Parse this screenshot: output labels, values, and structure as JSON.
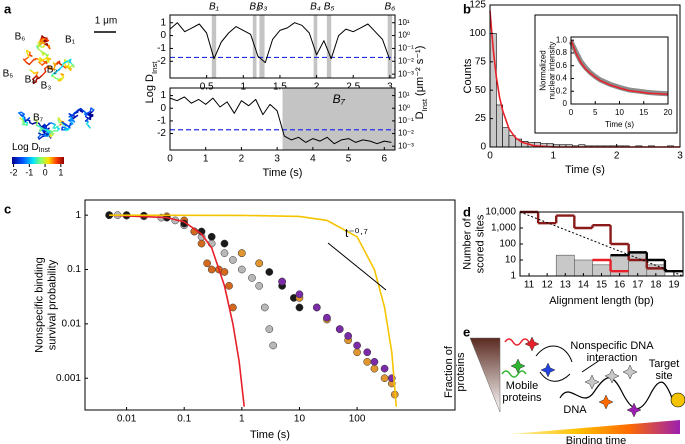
{
  "panel_labels": [
    "a",
    "b",
    "c",
    "d",
    "e"
  ],
  "trajectories": {
    "scale_bar": "1 μm",
    "labels": [
      "B₆",
      "B₁",
      "B₅",
      "B₂",
      "B₄",
      "B₃",
      "B₇"
    ],
    "colorbar_label": {
      "text": "Log D",
      "subscript": "Inst"
    },
    "colorbar_ticks": [
      -2,
      -1,
      0,
      1
    ],
    "colorbar_lim": [
      -2.1,
      1.2
    ]
  },
  "chart_data": [
    {
      "type": "line",
      "x": [
        0,
        0.1,
        0.2,
        0.3,
        0.4,
        0.5,
        0.6,
        0.7,
        0.8,
        0.9,
        1,
        1.1,
        1.2,
        1.3,
        1.4,
        1.5,
        1.6,
        1.7,
        1.8,
        1.9,
        2,
        2.1,
        2.2,
        2.3,
        2.4,
        2.5,
        2.6,
        2.7,
        2.8,
        2.9,
        3
      ],
      "series": [
        {
          "color": "#000000",
          "values": [
            0.5,
            1,
            0.3,
            0.6,
            0.9,
            0.2,
            -1.8,
            -0.5,
            0.2,
            0.7,
            0.4,
            0.1,
            -1.6,
            -2.1,
            -0.3,
            0.4,
            0.6,
            1,
            0.8,
            0.2,
            -1.5,
            -0.4,
            -1.8,
            0,
            0.5,
            0.3,
            0.6,
            0.9,
            0.3,
            -0.3,
            -1.9
          ]
        }
      ],
      "xlim": [
        0,
        3.07
      ],
      "xticks": [
        0.5,
        1,
        1.5,
        2,
        2.5,
        3
      ],
      "ylim": [
        -3.3,
        1.6
      ],
      "yticks": [
        1,
        0,
        -1,
        -2
      ],
      "y2lim": [
        -3.3,
        1.6
      ],
      "y2ticks": [
        {
          "value": 1,
          "label": "10¹"
        },
        {
          "value": 0,
          "label": "10⁰"
        },
        {
          "value": -1,
          "label": "10⁻¹"
        },
        {
          "value": -2,
          "label": "10⁻²"
        },
        {
          "value": -3,
          "label": "10⁻³"
        }
      ],
      "ylabel": {
        "text": "Log D",
        "subscript": "Inst"
      },
      "y2label": {
        "text": "D",
        "subscript": "Inst",
        "suffix": " (μm⁻² s⁻¹)"
      },
      "hline": {
        "value": -1.7,
        "color": "#2233ee"
      },
      "band_color": "#c4c4c4",
      "bands": [
        {
          "x": [
            0.57,
            0.63
          ],
          "label": "B₁"
        },
        {
          "x": [
            1.13,
            1.18
          ],
          "label": "B₂"
        },
        {
          "x": [
            1.22,
            1.29
          ],
          "label": "B₃"
        },
        {
          "x": [
            1.96,
            2.01
          ],
          "label": "B₄"
        },
        {
          "x": [
            2.14,
            2.2
          ],
          "label": "B₅"
        },
        {
          "x": [
            2.97,
            3.03
          ],
          "label": "B₆"
        }
      ]
    },
    {
      "type": "line",
      "x": [
        0,
        0.2,
        0.4,
        0.6,
        0.8,
        1,
        1.2,
        1.4,
        1.6,
        1.8,
        2,
        2.2,
        2.4,
        2.6,
        2.8,
        3,
        3.2,
        3.4,
        3.6,
        3.8,
        4,
        4.2,
        4.4,
        4.6,
        4.8,
        5,
        5.2,
        5.4,
        5.6,
        5.8,
        6,
        6.2
      ],
      "series": [
        {
          "color": "#000000",
          "values": [
            0.8,
            0.6,
            0.9,
            0.4,
            0.7,
            0.3,
            0.8,
            0.1,
            0.5,
            -0.4,
            0.6,
            0.2,
            0.7,
            -0.5,
            0.3,
            -0.2,
            -2.2,
            -2.5,
            -2.3,
            -2.7,
            -2.4,
            -2.6,
            -2.3,
            -2.8,
            -2.5,
            -2.4,
            -2.7,
            -2.5,
            -2.6,
            -2.8,
            -2.6,
            -2.7
          ]
        }
      ],
      "xlim": [
        0,
        6.3
      ],
      "xticks": [
        0,
        1,
        2,
        3,
        4,
        5,
        6
      ],
      "ylim": [
        -3.3,
        1.6
      ],
      "yticks": [
        1,
        0,
        -1,
        -2
      ],
      "y2lim": [
        -3.3,
        1.6
      ],
      "y2ticks": [
        {
          "value": 1,
          "label": "10¹"
        },
        {
          "value": 0,
          "label": "10⁰"
        },
        {
          "value": -1,
          "label": "10⁻¹"
        },
        {
          "value": -2,
          "label": "10⁻²"
        },
        {
          "value": -3,
          "label": "10⁻³"
        }
      ],
      "xlabel": "Time (s)",
      "hline": {
        "value": -1.7,
        "color": "#2233ee"
      },
      "band_color": "#c4c4c4",
      "bands": [
        {
          "x": [
            3.15,
            6.3
          ],
          "label": "B₇"
        }
      ]
    },
    {
      "type": "histogram",
      "bins": [
        0,
        0.1,
        0.2,
        0.3,
        0.4,
        0.5,
        0.6,
        0.7,
        0.8,
        0.9,
        1,
        1.1,
        1.2,
        1.3,
        1.4,
        1.5,
        1.6,
        1.7,
        1.8,
        1.9,
        2,
        2.1,
        2.2,
        2.3,
        2.4,
        2.5,
        2.6,
        2.7,
        2.8,
        2.9,
        3
      ],
      "counts": [
        100,
        37,
        17,
        10,
        7,
        5,
        4,
        4,
        3,
        3,
        2,
        2,
        2,
        1,
        2,
        1,
        1,
        1,
        1,
        1,
        1,
        1,
        0,
        1,
        0,
        1,
        0,
        0,
        1,
        0
      ],
      "color": "#c8c8c8",
      "fit": {
        "color": "#e8202a",
        "x": [
          0,
          0.05,
          0.1,
          0.15,
          0.2,
          0.3,
          0.4,
          0.5,
          0.7,
          1,
          1.5,
          2,
          3
        ],
        "values": [
          120,
          86,
          62,
          44,
          32,
          16,
          8.3,
          4.3,
          1.1,
          0.1,
          0,
          0,
          0
        ]
      },
      "xlim": [
        0,
        3
      ],
      "xticks": [
        0,
        1,
        2,
        3
      ],
      "ylim": [
        0,
        125
      ],
      "yticks": [
        0,
        25,
        50,
        75,
        100,
        125
      ],
      "ylabel": "Counts",
      "xlabel": "Time (s)"
    },
    {
      "type": "line",
      "x": [
        0,
        1,
        2,
        3,
        4,
        5,
        6,
        8,
        10,
        12,
        14,
        16,
        18,
        20
      ],
      "series": [
        {
          "color": "#8c8c8c",
          "line_width": 5,
          "values": [
            0.98,
            0.82,
            0.67,
            0.57,
            0.49,
            0.43,
            0.38,
            0.31,
            0.26,
            0.22,
            0.2,
            0.18,
            0.17,
            0.16
          ]
        },
        {
          "color": "#e8202a",
          "line_width": 1.5,
          "values": [
            1,
            0.8,
            0.65,
            0.55,
            0.48,
            0.42,
            0.37,
            0.3,
            0.25,
            0.21,
            0.19,
            0.17,
            0.16,
            0.15
          ]
        }
      ],
      "xlim": [
        0,
        20
      ],
      "xticks": [
        0,
        5,
        10,
        15,
        20
      ],
      "ylim": [
        0,
        1.05
      ],
      "yticks": [
        0,
        0.2,
        0.4,
        0.6,
        0.8,
        {
          "value": 1,
          "label": "1.0"
        }
      ],
      "ylabel": [
        "Normalized",
        "nuclear intensity"
      ],
      "xlabel": "Time (s)"
    },
    {
      "type": "scatter",
      "log_x": true,
      "log_y": true,
      "xlim": [
        0.0019,
        5000
      ],
      "ylim": [
        0.00026,
        1.9
      ],
      "xticks": [
        0.01,
        0.1,
        1,
        10,
        100
      ],
      "yticks": [
        1,
        0.1,
        0.01,
        0.001
      ],
      "ylabel": [
        "Nonspecific binding",
        "survival probability"
      ],
      "xlabel": "Time (s)",
      "annotation": "t⁻⁰·⁷",
      "series": [
        {
          "kind": "markers",
          "color": "#b8b8b8",
          "x": [
            0.005,
            0.007,
            0.01,
            0.02,
            0.04,
            0.07,
            0.1,
            0.15,
            0.2,
            0.3,
            0.5,
            0.7,
            1,
            1.5,
            2,
            2.5,
            3,
            3.5
          ],
          "values": [
            1,
            1,
            0.98,
            0.95,
            0.9,
            0.8,
            0.65,
            0.5,
            0.4,
            0.3,
            0.2,
            0.15,
            0.1,
            0.07,
            0.05,
            0.02,
            0.008,
            0.004
          ]
        },
        {
          "kind": "markers",
          "color": "#d2691e",
          "x": [
            0.005,
            0.01,
            0.05,
            0.1,
            0.15,
            0.2,
            0.25,
            0.3,
            0.4,
            0.5,
            0.6,
            0.7
          ],
          "values": [
            1,
            1,
            0.95,
            0.8,
            0.5,
            0.3,
            0.13,
            0.1,
            0.1,
            0.09,
            0.05,
            0.02
          ]
        },
        {
          "kind": "markers",
          "color": "#1a1a1a",
          "x": [
            0.005,
            0.01,
            0.02,
            0.05,
            0.1,
            0.2,
            0.3,
            0.5,
            1,
            2,
            3,
            5,
            8,
            10
          ],
          "values": [
            1,
            1,
            0.98,
            0.9,
            0.7,
            0.5,
            0.4,
            0.3,
            0.2,
            0.13,
            0.09,
            0.05,
            0.03,
            0.02
          ]
        },
        {
          "kind": "markers",
          "color": "#e0952e",
          "x": [
            1,
            2,
            5,
            10,
            20,
            30,
            50,
            70,
            100,
            150,
            200,
            300,
            400,
            450
          ],
          "values": [
            0.2,
            0.13,
            0.06,
            0.03,
            0.02,
            0.012,
            0.008,
            0.005,
            0.003,
            0.002,
            0.0015,
            0.001,
            0.0008,
            0.0005
          ]
        },
        {
          "kind": "markers",
          "color": "#7b2aa8",
          "x": [
            5,
            10,
            20,
            30,
            50,
            70,
            100,
            150,
            200,
            300,
            400
          ],
          "values": [
            0.06,
            0.035,
            0.02,
            0.013,
            0.008,
            0.006,
            0.004,
            0.003,
            0.002,
            0.0015,
            0.001
          ]
        },
        {
          "kind": "line",
          "color": "#e8202a",
          "x": [
            0.005,
            0.05,
            0.1,
            0.2,
            0.3,
            0.5,
            0.7,
            0.9,
            1.1
          ],
          "values": [
            1,
            0.9,
            0.75,
            0.45,
            0.25,
            0.05,
            0.01,
            0.002,
            0.0003
          ]
        },
        {
          "kind": "line",
          "color": "#f5c400",
          "x": [
            0.005,
            1,
            10,
            30,
            100,
            200,
            300,
            400,
            480
          ],
          "values": [
            1,
            0.99,
            0.95,
            0.8,
            0.4,
            0.1,
            0.02,
            0.003,
            0.0003
          ]
        }
      ]
    },
    {
      "type": "bar_step",
      "log_y": true,
      "x": [
        11,
        12,
        13,
        14,
        15,
        16,
        17,
        18,
        19
      ],
      "xlim": [
        10.5,
        19.5
      ],
      "xticks": [
        11,
        12,
        13,
        14,
        15,
        16,
        17,
        18,
        19
      ],
      "ylim": [
        1,
        10000
      ],
      "yticks": [
        1,
        10,
        100,
        {
          "value": 1000,
          "label": "1,000"
        },
        {
          "value": 10000,
          "label": "10,000"
        }
      ],
      "ylabel": [
        "Number of",
        "scored sites"
      ],
      "xlabel": "Alignment length (bp)",
      "series": [
        {
          "kind": "bar",
          "color": "#c8c8c8",
          "values": [
            null,
            null,
            20,
            10,
            5,
            20,
            30,
            5,
            null
          ]
        },
        {
          "kind": "step",
          "color": "#8b1a1a",
          "values": [
            10000,
            2000,
            6000,
            1000,
            1500,
            100,
            10,
            3,
            null
          ]
        },
        {
          "kind": "step",
          "color": "#e8202a",
          "values": [
            null,
            null,
            null,
            null,
            10,
            2,
            null,
            null,
            null
          ]
        },
        {
          "kind": "step",
          "color": "#000000",
          "values": [
            null,
            null,
            null,
            null,
            null,
            20,
            30,
            10,
            2
          ]
        }
      ],
      "trend": {
        "x": [
          10.5,
          19.5
        ],
        "values": [
          10000,
          1
        ]
      }
    }
  ],
  "diagram": {
    "fraction": [
      "Fraction of",
      "proteins"
    ],
    "mobile": [
      "Mobile",
      "proteins"
    ],
    "interaction": [
      "Nonspecific DNA",
      "interaction"
    ],
    "dna": "DNA",
    "target": [
      "Target",
      "site"
    ],
    "binding_time": "Binding time"
  }
}
